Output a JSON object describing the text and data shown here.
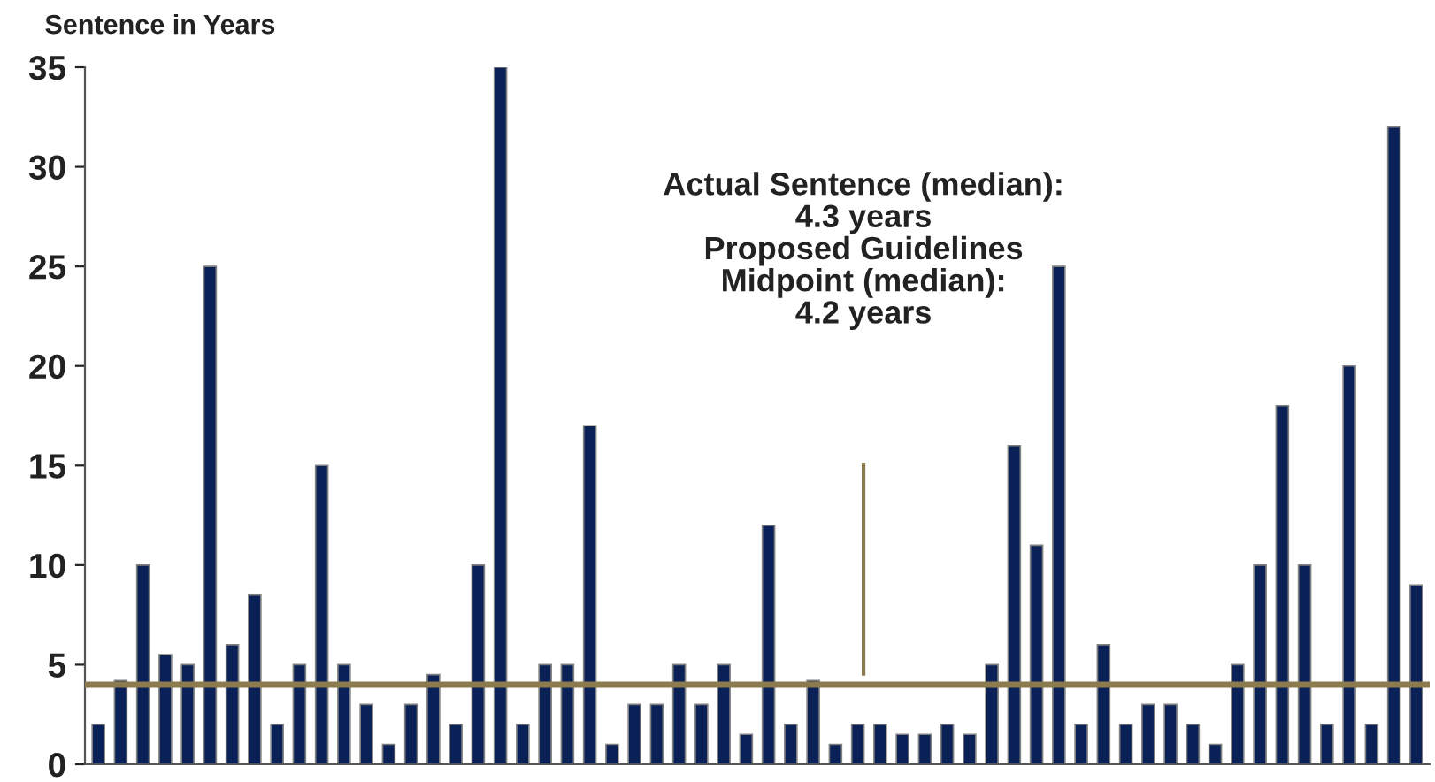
{
  "chart_data": {
    "type": "bar",
    "ylabel": "Sentence in Years",
    "categories": [
      null,
      null,
      null,
      null,
      null,
      null,
      null,
      null,
      null,
      null,
      null,
      null,
      null,
      null,
      null,
      null,
      null,
      null,
      null,
      null,
      null,
      null,
      null,
      null,
      null,
      null,
      null,
      null,
      null,
      null,
      null,
      null,
      null,
      null,
      null,
      null,
      null,
      null,
      null,
      null,
      null,
      null,
      null,
      null,
      null,
      null,
      null,
      null,
      null,
      null,
      null,
      null,
      null,
      null,
      null,
      null,
      null,
      null,
      null,
      null
    ],
    "values": [
      2,
      4.2,
      10,
      5.5,
      5,
      25,
      6,
      8.5,
      2,
      5,
      15,
      5,
      3,
      1,
      3,
      4.5,
      2,
      10,
      35,
      2,
      5,
      5,
      17,
      1,
      3,
      3,
      5,
      3,
      5,
      1.5,
      12,
      2,
      4.2,
      1,
      2,
      2,
      1.5,
      1.5,
      2,
      1.5,
      5,
      16,
      11,
      25,
      2,
      6,
      2,
      3,
      3,
      2,
      1,
      5,
      10,
      18,
      10,
      2,
      20,
      2,
      32,
      9
    ],
    "color": "#0a2158",
    "ylim": [
      0,
      35
    ],
    "yticks": [
      0,
      5,
      10,
      15,
      20,
      25,
      30,
      35
    ],
    "ref_lines": [
      {
        "axis": "y",
        "value": 4,
        "color": "#8c7b4f"
      }
    ],
    "annotations": [
      "Actual Sentence (median):\n4.3 years\nProposed Guidelines\nMidpoint (median):\n4.2 years"
    ]
  }
}
